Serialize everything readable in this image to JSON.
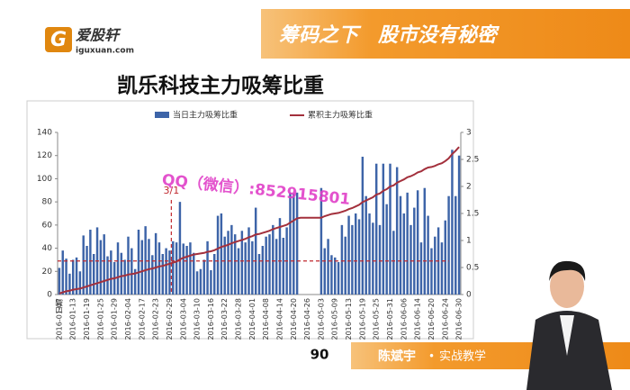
{
  "header": {
    "logo": "爱股轩",
    "site": "iguxuan.com",
    "slogan": "筹码之下　股市没有秘密"
  },
  "slide_title": "凯乐科技主力吸筹比重",
  "watermark": "QQ（微信）:852915801",
  "page_number": "90",
  "presenter": {
    "name": "陈斌宇",
    "tag": "实战教学"
  },
  "chart_data": {
    "type": "bar_line",
    "x_label": "日期",
    "categories": [
      "2016-01-07",
      null,
      null,
      null,
      "2016-01-13",
      null,
      null,
      null,
      "2016-01-19",
      null,
      null,
      null,
      "2016-01-25",
      null,
      null,
      null,
      "2016-01-29",
      null,
      null,
      null,
      "2016-02-04",
      null,
      null,
      null,
      "2016-02-17",
      null,
      null,
      null,
      "2016-02-23",
      null,
      null,
      null,
      "2016-02-29",
      null,
      null,
      null,
      "2016-03-04",
      null,
      null,
      null,
      "2016-03-10",
      null,
      null,
      null,
      "2016-03-16",
      null,
      null,
      null,
      "2016-03-22",
      null,
      null,
      null,
      "2016-03-28",
      null,
      null,
      null,
      "2016-04-01",
      null,
      null,
      null,
      "2016-04-08",
      null,
      null,
      null,
      "2016-04-14",
      null,
      null,
      null,
      "2016-04-20",
      null,
      null,
      null,
      "2016-04-26",
      null,
      null,
      null,
      "2016-05-03",
      null,
      null,
      null,
      "2016-05-09",
      null,
      null,
      null,
      "2016-05-13",
      null,
      null,
      null,
      "2016-05-19",
      null,
      null,
      null,
      "2016-05-25",
      null,
      null,
      null,
      "2016-05-31",
      null,
      null,
      null,
      "2016-06-06",
      null,
      null,
      null,
      "2016-06-14",
      null,
      null,
      null,
      "2016-06-20",
      null,
      null,
      null,
      "2016-06-24",
      null,
      null,
      null,
      "2016-06-30"
    ],
    "series": [
      {
        "name": "当日主力吸筹比重",
        "color": "#3d64a8",
        "values": [
          23,
          38,
          31,
          18,
          30,
          32,
          20,
          51,
          42,
          56,
          35,
          58,
          47,
          52,
          33,
          38,
          28,
          45,
          36,
          30,
          50,
          40,
          22,
          56,
          47,
          59,
          48,
          34,
          53,
          45,
          35,
          40,
          38,
          46,
          45,
          80,
          44,
          42,
          45,
          36,
          20,
          22,
          30,
          46,
          21,
          35,
          68,
          70,
          50,
          55,
          60,
          52,
          40,
          55,
          45,
          58,
          46,
          75,
          35,
          42,
          50,
          52,
          60,
          48,
          66,
          49,
          58,
          88,
          87,
          88,
          null,
          null,
          null,
          null,
          null,
          null,
          92,
          40,
          48,
          34,
          32,
          28,
          60,
          50,
          68,
          60,
          70,
          65,
          119,
          85,
          70,
          62,
          113,
          60,
          113,
          78,
          113,
          55,
          110,
          85,
          70,
          88,
          60,
          75,
          90,
          45,
          92,
          68,
          40,
          50,
          58,
          45,
          64,
          85,
          125,
          85,
          120
        ]
      },
      {
        "name": "累积主力吸筹比重",
        "color": "#a3303c",
        "axis": "y2",
        "values": [
          0.02,
          0.04,
          0.06,
          0.07,
          0.09,
          0.1,
          0.11,
          0.13,
          0.15,
          0.17,
          0.19,
          0.21,
          0.23,
          0.25,
          0.27,
          0.29,
          0.3,
          0.32,
          0.34,
          0.35,
          0.37,
          0.38,
          0.39,
          0.41,
          0.43,
          0.45,
          0.47,
          0.48,
          0.5,
          0.52,
          0.53,
          0.55,
          0.57,
          0.59,
          0.61,
          0.65,
          0.68,
          0.7,
          0.72,
          0.74,
          0.75,
          0.76,
          0.77,
          0.79,
          0.8,
          0.82,
          0.85,
          0.88,
          0.9,
          0.92,
          0.95,
          0.97,
          0.99,
          1.01,
          1.03,
          1.06,
          1.08,
          1.11,
          1.12,
          1.14,
          1.16,
          1.18,
          1.21,
          1.23,
          1.25,
          1.27,
          1.29,
          1.33,
          1.37,
          1.41,
          1.42,
          1.42,
          1.42,
          1.42,
          1.42,
          1.42,
          1.42,
          1.45,
          1.47,
          1.49,
          1.5,
          1.51,
          1.53,
          1.55,
          1.58,
          1.6,
          1.63,
          1.66,
          1.71,
          1.74,
          1.77,
          1.8,
          1.85,
          1.87,
          1.92,
          1.95,
          2.0,
          2.02,
          2.07,
          2.1,
          2.13,
          2.17,
          2.19,
          2.22,
          2.26,
          2.28,
          2.32,
          2.35,
          2.36,
          2.38,
          2.41,
          2.43,
          2.47,
          2.52,
          2.6,
          2.66,
          2.73
        ]
      }
    ],
    "ylim": [
      0,
      140
    ],
    "yticks": [
      0,
      20,
      40,
      60,
      80,
      100,
      120,
      140
    ],
    "y2lim": [
      0,
      3
    ],
    "y2ticks": [
      0,
      0.5,
      1,
      1.5,
      2,
      2.5,
      3
    ],
    "reference_line": {
      "value": 29,
      "color": "#c0282e"
    },
    "annotation": "3/1",
    "legend": "top"
  }
}
